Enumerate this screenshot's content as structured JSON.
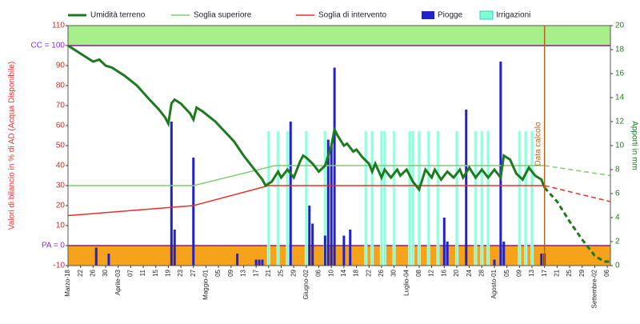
{
  "chart_data": {
    "type": "combo",
    "y_title": "Valori di bilancio in % di AD (Acqua Disponibile)",
    "y2_title": "Apporti in mm",
    "annotations": [
      {
        "text": "Data calcolo",
        "x": 152
      }
    ],
    "xlim": [
      0,
      173
    ],
    "xticks": [
      {
        "value": 0,
        "label": "Marzo-18"
      },
      {
        "value": 4,
        "label": "22"
      },
      {
        "value": 8,
        "label": "26"
      },
      {
        "value": 12,
        "label": "30"
      },
      {
        "value": 16,
        "label": "Aprile-03"
      },
      {
        "value": 20,
        "label": "07"
      },
      {
        "value": 24,
        "label": "11"
      },
      {
        "value": 28,
        "label": "15"
      },
      {
        "value": 32,
        "label": "19"
      },
      {
        "value": 36,
        "label": "23"
      },
      {
        "value": 40,
        "label": "27"
      },
      {
        "value": 44,
        "label": "Maggio-01"
      },
      {
        "value": 48,
        "label": "05"
      },
      {
        "value": 52,
        "label": "09"
      },
      {
        "value": 56,
        "label": "13"
      },
      {
        "value": 60,
        "label": "17"
      },
      {
        "value": 64,
        "label": "21"
      },
      {
        "value": 68,
        "label": "25"
      },
      {
        "value": 72,
        "label": "29"
      },
      {
        "value": 76,
        "label": "Giugno-02"
      },
      {
        "value": 80,
        "label": "06"
      },
      {
        "value": 84,
        "label": "10"
      },
      {
        "value": 88,
        "label": "14"
      },
      {
        "value": 92,
        "label": "18"
      },
      {
        "value": 96,
        "label": "22"
      },
      {
        "value": 100,
        "label": "26"
      },
      {
        "value": 104,
        "label": "30"
      },
      {
        "value": 108,
        "label": "Luglio-04"
      },
      {
        "value": 112,
        "label": "08"
      },
      {
        "value": 116,
        "label": "12"
      },
      {
        "value": 120,
        "label": "16"
      },
      {
        "value": 124,
        "label": "20"
      },
      {
        "value": 128,
        "label": "24"
      },
      {
        "value": 132,
        "label": "28"
      },
      {
        "value": 136,
        "label": "Agosto-01"
      },
      {
        "value": 140,
        "label": "05"
      },
      {
        "value": 144,
        "label": "09"
      },
      {
        "value": 148,
        "label": "13"
      },
      {
        "value": 152,
        "label": "17"
      },
      {
        "value": 156,
        "label": "21"
      },
      {
        "value": 160,
        "label": "25"
      },
      {
        "value": 164,
        "label": "29"
      },
      {
        "value": 168,
        "label": "Settembre-02"
      },
      {
        "value": 172,
        "label": "06"
      }
    ],
    "ylim": [
      -10,
      110
    ],
    "yticks": [
      -10,
      {
        "value": 0,
        "label": "PA = 0"
      },
      10,
      20,
      30,
      40,
      50,
      60,
      70,
      80,
      90,
      {
        "value": 100,
        "label": "CC = 100"
      },
      110
    ],
    "y2lim": [
      0,
      20
    ],
    "y2ticks": [
      0,
      2,
      4,
      6,
      8,
      10,
      12,
      14,
      16,
      18,
      20
    ],
    "series": [
      {
        "name": "Umidità terreno",
        "type": "line",
        "color": "#1e7a1e",
        "x": [
          0,
          3,
          6,
          8,
          10,
          12,
          14,
          18,
          22,
          26,
          29,
          31,
          32,
          33,
          34,
          36,
          39,
          40,
          41,
          43,
          47,
          50,
          53,
          56,
          59,
          62,
          63,
          65,
          67,
          68,
          70,
          72,
          74,
          75,
          76,
          78,
          80,
          82,
          83,
          84,
          85,
          86,
          88,
          89,
          91,
          92,
          94,
          96,
          97,
          98,
          100,
          101,
          103,
          105,
          106,
          108,
          110,
          112,
          114,
          116,
          117,
          119,
          121,
          123,
          125,
          126,
          128,
          130,
          132,
          134,
          136,
          138,
          139,
          141,
          143,
          145,
          147,
          149,
          151,
          152,
          156,
          160,
          164,
          168,
          171,
          173
        ],
        "values": [
          100,
          97,
          94,
          92,
          93,
          90,
          89,
          85,
          80,
          73,
          68,
          64,
          61,
          71,
          73,
          71,
          66,
          63,
          69,
          67,
          62,
          57,
          52,
          45,
          39,
          33,
          30,
          32,
          37,
          34,
          38,
          34,
          42,
          45,
          44,
          41,
          37,
          40,
          45,
          50,
          58,
          55,
          50,
          51,
          47,
          48,
          44,
          41,
          37,
          41,
          34,
          38,
          34,
          38,
          35,
          38,
          32,
          28,
          38,
          34,
          38,
          33,
          37,
          34,
          38,
          34,
          39,
          34,
          38,
          34,
          38,
          34,
          45,
          43,
          36,
          33,
          39,
          35,
          33,
          29,
          22,
          12,
          3,
          -5,
          -8,
          -8
        ]
      },
      {
        "name": "Soglia superiore",
        "type": "line",
        "color": "#7fcf6f",
        "x": [
          0,
          40,
          66,
          152,
          173
        ],
        "values": [
          30,
          30,
          40,
          40,
          35
        ]
      },
      {
        "name": "Soglia di intervento",
        "type": "line",
        "color": "#e8302a",
        "x": [
          0,
          40,
          64,
          152,
          173
        ],
        "values": [
          15,
          20,
          30,
          30,
          22
        ]
      },
      {
        "name": "Piogge",
        "type": "bar",
        "axis": "y2",
        "color": "#2222cc",
        "x": [
          9,
          13,
          33,
          34,
          40,
          54,
          60,
          61,
          62,
          71,
          77,
          78,
          82,
          83,
          84,
          85,
          88,
          90,
          120,
          121,
          127,
          136,
          138,
          139,
          151,
          152
        ],
        "values": [
          1.5,
          1,
          12,
          3,
          9,
          1,
          0.5,
          0.5,
          0.5,
          12,
          5,
          3.5,
          2.5,
          10.5,
          10,
          16.5,
          2.5,
          3,
          4,
          2,
          13,
          0.5,
          17,
          2,
          1,
          1
        ]
      },
      {
        "name": "Irrigazioni",
        "type": "bar",
        "axis": "y2",
        "color": "#7fffd4",
        "x": [
          64,
          67,
          70,
          76,
          82,
          95,
          97,
          100,
          101,
          104,
          109,
          110,
          112,
          115,
          118,
          124,
          130,
          132,
          134,
          144,
          146,
          148
        ],
        "values": [
          11.2,
          11.2,
          11.2,
          11.2,
          11.2,
          11.2,
          11.2,
          11.2,
          11.2,
          11.2,
          11.2,
          11.2,
          11.2,
          11.2,
          11.2,
          11.2,
          11.2,
          11.2,
          11.2,
          11.2,
          11.2,
          11.2
        ]
      }
    ]
  }
}
